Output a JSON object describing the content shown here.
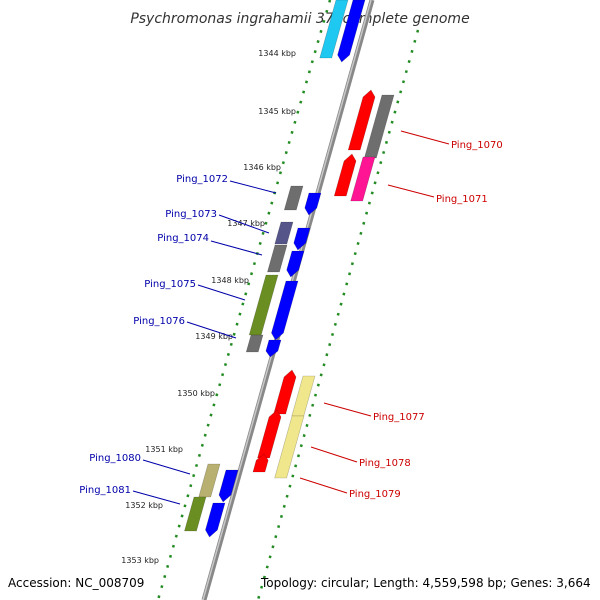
{
  "title": "Psychromonas ingrahamii 37, complete genome",
  "footer": {
    "accession": "Accession: NC_008709",
    "topology": "Topology: circular; Length: 4,559,598 bp; Genes: 3,664"
  },
  "ticks": [
    {
      "label": "1344 kbp",
      "kbp": 1344
    },
    {
      "label": "1345 kbp",
      "kbp": 1345
    },
    {
      "label": "1346 kbp",
      "kbp": 1346
    },
    {
      "label": "1347 kbp",
      "kbp": 1347
    },
    {
      "label": "1348 kbp",
      "kbp": 1348
    },
    {
      "label": "1349 kbp",
      "kbp": 1349
    },
    {
      "label": "1350 kbp",
      "kbp": 1350
    },
    {
      "label": "1351 kbp",
      "kbp": 1351
    },
    {
      "label": "1352 kbp",
      "kbp": 1352
    },
    {
      "label": "1353 kbp",
      "kbp": 1353
    }
  ],
  "gene_labels": [
    {
      "text": "Ping_1070",
      "color": "#cc0000"
    },
    {
      "text": "Ping_1071",
      "color": "#cc0000"
    },
    {
      "text": "Ping_1072",
      "color": "#0000aa"
    },
    {
      "text": "Ping_1073",
      "color": "#0000aa"
    },
    {
      "text": "Ping_1074",
      "color": "#0000aa"
    },
    {
      "text": "Ping_1075",
      "color": "#0000aa"
    },
    {
      "text": "Ping_1076",
      "color": "#0000aa"
    },
    {
      "text": "Ping_1077",
      "color": "#cc0000"
    },
    {
      "text": "Ping_1078",
      "color": "#cc0000"
    },
    {
      "text": "Ping_1079",
      "color": "#cc0000"
    },
    {
      "text": "Ping_1080",
      "color": "#0000aa"
    },
    {
      "text": "Ping_1081",
      "color": "#0000aa"
    }
  ],
  "colors": {
    "reverse_strand": "#ff0000",
    "forward_strand": "#0000ff",
    "backbone": "#888888",
    "tick_dots": "#228b22",
    "cyan_cds": "#1ec8f0",
    "gray_cds": "#6e6e6e",
    "magenta_cds": "#ff1493",
    "yellow_cds": "#f0e68c",
    "olive_cds": "#6b8e23",
    "khaki_cds": "#b8b070",
    "slate_cds": "#55558a"
  }
}
